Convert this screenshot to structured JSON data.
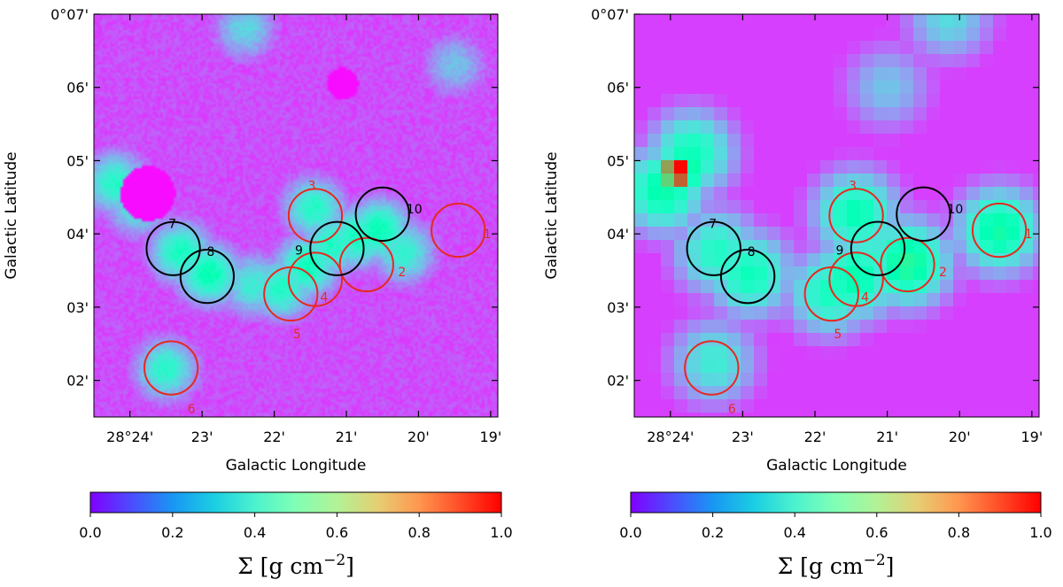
{
  "chart_data": [
    {
      "type": "heatmap",
      "title": "",
      "xlabel": "Galactic Longitude",
      "ylabel": "Galactic Latitude",
      "x_range_arcmin": [
        24.5,
        18.9
      ],
      "y_range_arcmin": [
        1.5,
        7.0
      ],
      "x_ticks": [
        {
          "value": 24,
          "label": "28°24'"
        },
        {
          "value": 23,
          "label": "23'"
        },
        {
          "value": 22,
          "label": "22'"
        },
        {
          "value": 21,
          "label": "21'"
        },
        {
          "value": 20,
          "label": "20'"
        },
        {
          "value": 19,
          "label": "19'"
        }
      ],
      "y_ticks": [
        {
          "value": 7,
          "label": "0°07'"
        },
        {
          "value": 6,
          "label": "06'"
        },
        {
          "value": 5,
          "label": "05'"
        },
        {
          "value": 4,
          "label": "04'"
        },
        {
          "value": 3,
          "label": "03'"
        },
        {
          "value": 2,
          "label": "02'"
        }
      ],
      "resolution": "high",
      "features": [
        {
          "l": 20.55,
          "b": 4.05,
          "v": 0.42
        },
        {
          "l": 20.85,
          "b": 3.95,
          "v": 0.38
        },
        {
          "l": 21.2,
          "b": 3.85,
          "v": 0.36
        },
        {
          "l": 21.55,
          "b": 3.55,
          "v": 0.4
        },
        {
          "l": 21.9,
          "b": 3.25,
          "v": 0.36
        },
        {
          "l": 22.3,
          "b": 3.3,
          "v": 0.3
        },
        {
          "l": 22.9,
          "b": 3.45,
          "v": 0.42
        },
        {
          "l": 23.3,
          "b": 3.75,
          "v": 0.38
        },
        {
          "l": 21.45,
          "b": 4.35,
          "v": 0.35
        },
        {
          "l": 23.5,
          "b": 2.15,
          "v": 0.34
        },
        {
          "l": 24.2,
          "b": 4.7,
          "v": 0.35
        },
        {
          "l": 23.9,
          "b": 4.4,
          "v": 0.3
        },
        {
          "l": 22.4,
          "b": 6.8,
          "v": 0.24
        },
        {
          "l": 19.5,
          "b": 6.3,
          "v": 0.2
        },
        {
          "l": 20.2,
          "b": 3.75,
          "v": 0.32
        }
      ],
      "voids": [
        {
          "l": 23.75,
          "b": 4.55,
          "r": 0.38
        },
        {
          "l": 21.05,
          "b": 6.05,
          "r": 0.22
        }
      ],
      "clumps": [
        {
          "id": "1",
          "l": 19.45,
          "b": 4.05,
          "color": "#e8281e"
        },
        {
          "id": "2",
          "l": 20.72,
          "b": 3.58,
          "color": "#e8281e"
        },
        {
          "id": "3",
          "l": 21.43,
          "b": 4.25,
          "color": "#e8281e"
        },
        {
          "id": "4",
          "l": 21.43,
          "b": 3.38,
          "color": "#e8281e"
        },
        {
          "id": "5",
          "l": 21.77,
          "b": 3.18,
          "color": "#e8281e"
        },
        {
          "id": "6",
          "l": 23.43,
          "b": 2.17,
          "color": "#e8281e"
        },
        {
          "id": "7",
          "l": 23.4,
          "b": 3.8,
          "color": "#000000"
        },
        {
          "id": "8",
          "l": 22.93,
          "b": 3.42,
          "color": "#000000"
        },
        {
          "id": "9",
          "l": 21.13,
          "b": 3.8,
          "color": "#000000"
        },
        {
          "id": "10",
          "l": 20.5,
          "b": 4.27,
          "color": "#000000"
        }
      ],
      "colorbar": {
        "ticks": [
          "0.0",
          "0.2",
          "0.4",
          "0.6",
          "0.8",
          "1.0"
        ],
        "label": "Σ [g cm",
        "exp": "−2",
        "label_end": "]"
      }
    },
    {
      "type": "heatmap",
      "title": "",
      "xlabel": "Galactic Longitude",
      "ylabel": "Galactic Latitude",
      "x_range_arcmin": [
        24.5,
        18.9
      ],
      "y_range_arcmin": [
        1.5,
        7.0
      ],
      "x_ticks": [
        {
          "value": 24,
          "label": "28°24'"
        },
        {
          "value": 23,
          "label": "23'"
        },
        {
          "value": 22,
          "label": "22'"
        },
        {
          "value": 21,
          "label": "21'"
        },
        {
          "value": 20,
          "label": "20'"
        },
        {
          "value": 19,
          "label": "19'"
        }
      ],
      "y_ticks": [
        {
          "value": 7,
          "label": "0°07'"
        },
        {
          "value": 6,
          "label": "06'"
        },
        {
          "value": 5,
          "label": "05'"
        },
        {
          "value": 4,
          "label": "04'"
        },
        {
          "value": 3,
          "label": "03'"
        },
        {
          "value": 2,
          "label": "02'"
        }
      ],
      "resolution": "low",
      "features": [
        {
          "l": 23.9,
          "b": 4.85,
          "v": 1.0
        },
        {
          "l": 24.1,
          "b": 4.6,
          "v": 0.45
        },
        {
          "l": 23.7,
          "b": 5.1,
          "v": 0.4
        },
        {
          "l": 19.45,
          "b": 4.05,
          "v": 0.46
        },
        {
          "l": 20.72,
          "b": 3.6,
          "v": 0.5
        },
        {
          "l": 21.43,
          "b": 4.28,
          "v": 0.42
        },
        {
          "l": 21.45,
          "b": 3.4,
          "v": 0.44
        },
        {
          "l": 21.8,
          "b": 3.2,
          "v": 0.38
        },
        {
          "l": 23.35,
          "b": 3.75,
          "v": 0.36
        },
        {
          "l": 22.9,
          "b": 3.45,
          "v": 0.4
        },
        {
          "l": 23.4,
          "b": 2.25,
          "v": 0.3
        },
        {
          "l": 21.2,
          "b": 3.85,
          "v": 0.3
        },
        {
          "l": 20.15,
          "b": 6.95,
          "v": 0.25
        },
        {
          "l": 21.0,
          "b": 6.0,
          "v": 0.2
        }
      ],
      "clumps": [
        {
          "id": "1",
          "l": 19.45,
          "b": 4.05,
          "color": "#e8281e"
        },
        {
          "id": "2",
          "l": 20.72,
          "b": 3.58,
          "color": "#e8281e"
        },
        {
          "id": "3",
          "l": 21.43,
          "b": 4.25,
          "color": "#e8281e"
        },
        {
          "id": "4",
          "l": 21.43,
          "b": 3.38,
          "color": "#e8281e"
        },
        {
          "id": "5",
          "l": 21.77,
          "b": 3.18,
          "color": "#e8281e"
        },
        {
          "id": "6",
          "l": 23.43,
          "b": 2.17,
          "color": "#e8281e"
        },
        {
          "id": "7",
          "l": 23.4,
          "b": 3.8,
          "color": "#000000"
        },
        {
          "id": "8",
          "l": 22.93,
          "b": 3.42,
          "color": "#000000"
        },
        {
          "id": "9",
          "l": 21.13,
          "b": 3.8,
          "color": "#000000"
        },
        {
          "id": "10",
          "l": 20.5,
          "b": 4.27,
          "color": "#000000"
        }
      ],
      "colorbar": {
        "ticks": [
          "0.0",
          "0.2",
          "0.4",
          "0.6",
          "0.8",
          "1.0"
        ],
        "label": "Σ [g cm",
        "exp": "−2",
        "label_end": "]"
      }
    }
  ]
}
